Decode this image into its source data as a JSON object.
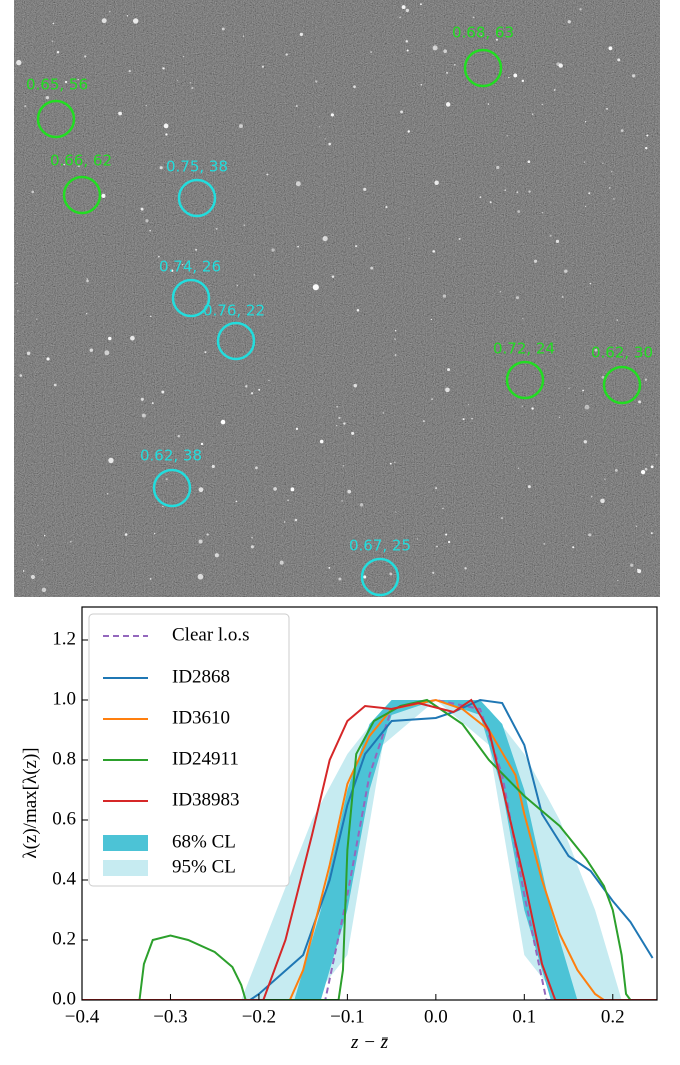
{
  "image_annotations": [
    {
      "label": "0.68, 63",
      "color": "#22dd22"
    },
    {
      "label": "0.65, 56",
      "color": "#22dd22"
    },
    {
      "label": "0.66, 62",
      "color": "#22dd22"
    },
    {
      "label": "0.75, 38",
      "color": "#22dddd"
    },
    {
      "label": "0.74, 26",
      "color": "#22dddd"
    },
    {
      "label": "0.76, 22",
      "color": "#22dddd"
    },
    {
      "label": "0.72, 24",
      "color": "#22dd22"
    },
    {
      "label": "0.62, 30",
      "color": "#22dd22"
    },
    {
      "label": "0.62, 38",
      "color": "#22dddd"
    },
    {
      "label": "0.67, 25",
      "color": "#22dddd"
    }
  ],
  "chart_data": {
    "type": "line",
    "x_label": "z − z̄",
    "y_label": "λ(z)/max[λ(z)]",
    "xlim": [
      -0.4,
      0.25
    ],
    "ylim": [
      0,
      1.31
    ],
    "xticks": [
      {
        "value": -0.4,
        "label": "−0.4"
      },
      {
        "value": -0.3,
        "label": "−0.3"
      },
      {
        "value": -0.2,
        "label": "−0.2"
      },
      {
        "value": -0.1,
        "label": "−0.1"
      },
      {
        "value": 0,
        "label": "0.0"
      },
      {
        "value": 0.1,
        "label": "0.1"
      },
      {
        "value": 0.2,
        "label": "0.2"
      }
    ],
    "yticks": [
      {
        "value": 0,
        "label": "0.0"
      },
      {
        "value": 0.2,
        "label": "0.2"
      },
      {
        "value": 0.4,
        "label": "0.4"
      },
      {
        "value": 0.6,
        "label": "0.6"
      },
      {
        "value": 0.8,
        "label": "0.8"
      },
      {
        "value": 1,
        "label": "1.0"
      },
      {
        "value": 1.2,
        "label": "1.2"
      }
    ],
    "legend": "upper left",
    "series": [
      {
        "name": "Clear l.o.s",
        "color": "#9467bd",
        "dashed": true,
        "x": [
          -0.4,
          -0.125,
          -0.1,
          -0.075,
          -0.05,
          0,
          0.05,
          0.075,
          0.1,
          0.125,
          0.25
        ],
        "values": [
          0,
          0,
          0.35,
          0.75,
          0.97,
          1.0,
          0.97,
          0.75,
          0.35,
          0,
          0
        ]
      },
      {
        "name": "ID2868",
        "color": "#1f77b4",
        "x": [
          -0.4,
          -0.21,
          -0.2,
          -0.15,
          -0.12,
          -0.1,
          -0.08,
          -0.05,
          0,
          0.02,
          0.05,
          0.075,
          0.1,
          0.12,
          0.15,
          0.175,
          0.2,
          0.22,
          0.245
        ],
        "values": [
          0,
          0,
          0.02,
          0.15,
          0.4,
          0.65,
          0.82,
          0.93,
          0.94,
          0.96,
          1.0,
          0.99,
          0.85,
          0.62,
          0.48,
          0.43,
          0.33,
          0.26,
          0.14
        ]
      },
      {
        "name": "ID3610",
        "color": "#ff7f0e",
        "x": [
          -0.4,
          -0.165,
          -0.15,
          -0.12,
          -0.1,
          -0.075,
          -0.05,
          0,
          0.03,
          0.06,
          0.09,
          0.1,
          0.12,
          0.14,
          0.16,
          0.18,
          0.19,
          0.25
        ],
        "values": [
          0,
          0,
          0.1,
          0.45,
          0.72,
          0.88,
          0.97,
          1.0,
          0.97,
          0.9,
          0.75,
          0.62,
          0.4,
          0.22,
          0.1,
          0.02,
          0,
          0
        ]
      },
      {
        "name": "ID24911",
        "color": "#2ca02c",
        "x": [
          -0.4,
          -0.335,
          -0.33,
          -0.32,
          -0.3,
          -0.28,
          -0.25,
          -0.23,
          -0.22,
          -0.215,
          -0.11,
          -0.105,
          -0.1,
          -0.09,
          -0.07,
          -0.04,
          -0.01,
          0.03,
          0.06,
          0.1,
          0.14,
          0.17,
          0.19,
          0.2,
          0.21,
          0.215,
          0.22,
          0.25
        ],
        "values": [
          0,
          0,
          0.12,
          0.2,
          0.215,
          0.2,
          0.16,
          0.11,
          0.05,
          0,
          0,
          0.1,
          0.5,
          0.82,
          0.93,
          0.98,
          1.0,
          0.92,
          0.8,
          0.68,
          0.58,
          0.47,
          0.38,
          0.3,
          0.15,
          0.02,
          0,
          0
        ]
      },
      {
        "name": "ID38983",
        "color": "#d62728",
        "x": [
          -0.4,
          -0.195,
          -0.17,
          -0.14,
          -0.12,
          -0.1,
          -0.08,
          -0.05,
          -0.02,
          0.02,
          0.04,
          0.06,
          0.08,
          0.1,
          0.12,
          0.135,
          0.25
        ],
        "values": [
          0,
          0,
          0.2,
          0.55,
          0.8,
          0.93,
          0.98,
          0.97,
          0.99,
          0.96,
          1.0,
          0.9,
          0.65,
          0.4,
          0.12,
          0,
          0
        ]
      }
    ],
    "bands": [
      {
        "name": "68% CL",
        "color": "#4cc3d6",
        "x": [
          -0.16,
          -0.13,
          -0.1,
          -0.075,
          -0.05,
          0,
          0.05,
          0.075,
          0.1,
          0.13,
          0.16
        ],
        "lower": [
          0,
          0,
          0.3,
          0.7,
          0.95,
          1,
          0.95,
          0.7,
          0.3,
          0,
          0
        ],
        "upper": [
          0,
          0.3,
          0.7,
          0.92,
          1,
          1,
          1,
          0.92,
          0.7,
          0.3,
          0
        ]
      },
      {
        "name": "95% CL",
        "color": "#c6ebf1",
        "x": [
          -0.22,
          -0.18,
          -0.14,
          -0.1,
          -0.06,
          0,
          0.06,
          0.1,
          0.14,
          0.18,
          0.21
        ],
        "lower": [
          0,
          0,
          0,
          0.15,
          0.85,
          1,
          0.85,
          0.15,
          0,
          0,
          0
        ],
        "upper": [
          0,
          0.3,
          0.6,
          0.82,
          0.97,
          1,
          0.97,
          0.82,
          0.6,
          0.3,
          0
        ]
      }
    ]
  }
}
